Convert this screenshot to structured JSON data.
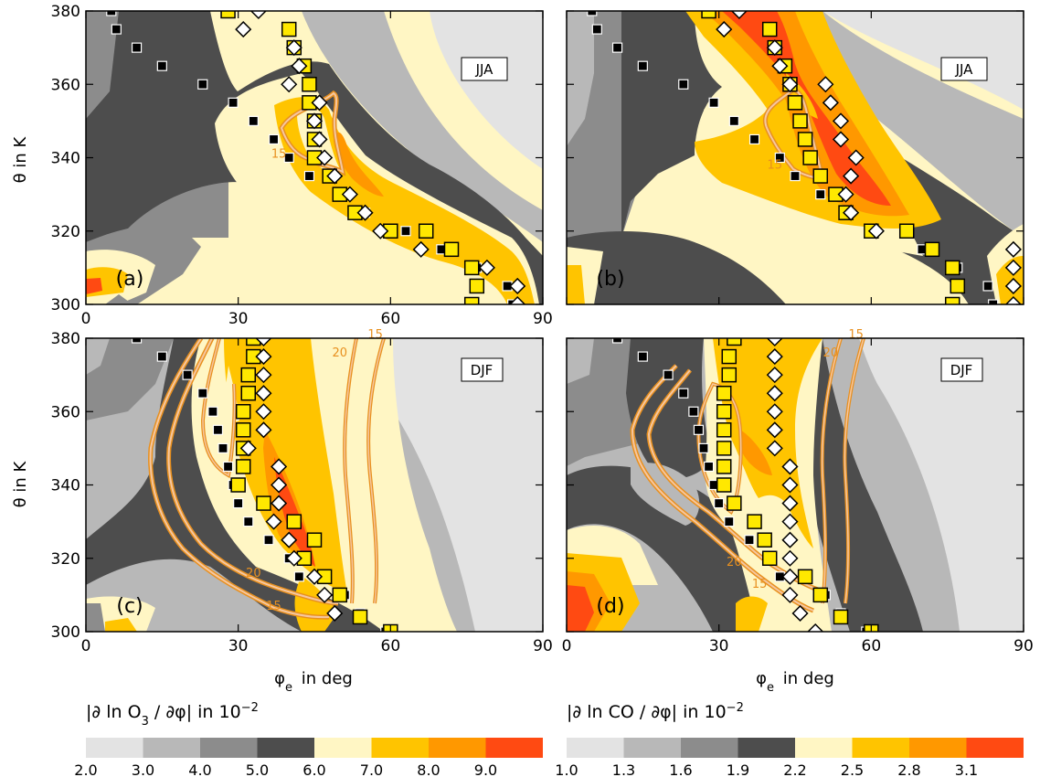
{
  "chart_data": [
    {
      "type": "heatmap",
      "panel": "(a)",
      "season": "JJA",
      "xlabel": "",
      "ylabel": "θ in K",
      "xlim": [
        0,
        90
      ],
      "ylim": [
        300,
        380
      ],
      "xticks": [
        "0",
        "30",
        "60",
        "90"
      ],
      "yticks": [
        "300",
        "320",
        "340",
        "360",
        "380"
      ],
      "field": "|∂ ln O3 / ∂φ|",
      "contour_labels": [
        {
          "text": "15",
          "x": 38,
          "y": 340
        }
      ],
      "squares_yellow": [
        [
          28,
          380
        ],
        [
          40,
          375
        ],
        [
          41,
          370
        ],
        [
          43,
          365
        ],
        [
          44,
          360
        ],
        [
          44,
          355
        ],
        [
          45,
          350
        ],
        [
          45,
          345
        ],
        [
          45,
          340
        ],
        [
          48,
          335
        ],
        [
          50,
          330
        ],
        [
          53,
          325
        ],
        [
          60,
          320
        ],
        [
          67,
          320
        ],
        [
          72,
          315
        ],
        [
          76,
          310
        ],
        [
          77,
          305
        ],
        [
          76,
          300
        ]
      ],
      "diamonds": [
        [
          34,
          380
        ],
        [
          31,
          375
        ],
        [
          41,
          370
        ],
        [
          42,
          365
        ],
        [
          40,
          360
        ],
        [
          46,
          355
        ],
        [
          45,
          350
        ],
        [
          46,
          345
        ],
        [
          47,
          340
        ],
        [
          49,
          335
        ],
        [
          52,
          330
        ],
        [
          55,
          325
        ],
        [
          58,
          320
        ],
        [
          66,
          315
        ],
        [
          79,
          310
        ],
        [
          85,
          305
        ],
        [
          85,
          300
        ]
      ],
      "squares_black": [
        [
          5,
          380
        ],
        [
          6,
          375
        ],
        [
          10,
          370
        ],
        [
          15,
          365
        ],
        [
          23,
          360
        ],
        [
          29,
          355
        ],
        [
          33,
          350
        ],
        [
          37,
          345
        ],
        [
          40,
          340
        ],
        [
          44,
          335
        ],
        [
          50,
          330
        ],
        [
          55,
          325
        ],
        [
          63,
          320
        ],
        [
          70,
          315
        ],
        [
          77,
          310
        ],
        [
          83,
          305
        ],
        [
          84,
          300
        ]
      ]
    },
    {
      "type": "heatmap",
      "panel": "(b)",
      "season": "JJA",
      "xlabel": "",
      "ylabel": "",
      "xlim": [
        0,
        90
      ],
      "ylim": [
        300,
        380
      ],
      "field": "|∂ ln CO / ∂φ|",
      "contour_labels": [
        {
          "text": "15",
          "x": 41,
          "y": 337
        }
      ],
      "squares_yellow": [
        [
          28,
          380
        ],
        [
          40,
          375
        ],
        [
          41,
          370
        ],
        [
          43,
          365
        ],
        [
          44,
          360
        ],
        [
          45,
          355
        ],
        [
          46,
          350
        ],
        [
          47,
          345
        ],
        [
          48,
          340
        ],
        [
          50,
          335
        ],
        [
          53,
          330
        ],
        [
          55,
          325
        ],
        [
          60,
          320
        ],
        [
          67,
          320
        ],
        [
          72,
          315
        ],
        [
          76,
          310
        ],
        [
          77,
          305
        ],
        [
          76,
          300
        ]
      ],
      "diamonds": [
        [
          34,
          380
        ],
        [
          31,
          375
        ],
        [
          41,
          370
        ],
        [
          42,
          365
        ],
        [
          44,
          360
        ],
        [
          51,
          360
        ],
        [
          52,
          355
        ],
        [
          54,
          350
        ],
        [
          54,
          345
        ],
        [
          57,
          340
        ],
        [
          56,
          335
        ],
        [
          55,
          330
        ],
        [
          56,
          325
        ],
        [
          61,
          320
        ],
        [
          88,
          315
        ],
        [
          88,
          310
        ],
        [
          88,
          305
        ],
        [
          88,
          300
        ]
      ],
      "squares_black": [
        [
          5,
          380
        ],
        [
          6,
          375
        ],
        [
          10,
          370
        ],
        [
          15,
          365
        ],
        [
          23,
          360
        ],
        [
          29,
          355
        ],
        [
          33,
          350
        ],
        [
          37,
          345
        ],
        [
          42,
          340
        ],
        [
          45,
          335
        ],
        [
          50,
          330
        ],
        [
          55,
          325
        ],
        [
          60,
          320
        ],
        [
          70,
          315
        ],
        [
          77,
          310
        ],
        [
          83,
          305
        ],
        [
          84,
          300
        ]
      ]
    },
    {
      "type": "heatmap",
      "panel": "(c)",
      "season": "DJF",
      "xlabel": "φe in deg",
      "ylabel": "θ in K",
      "xlim": [
        0,
        90
      ],
      "ylim": [
        300,
        380
      ],
      "xticks": [
        "0",
        "30",
        "60",
        "90"
      ],
      "yticks": [
        "300",
        "320",
        "340",
        "360",
        "380"
      ],
      "field": "|∂ ln O3 / ∂φ|",
      "contour_labels": [
        {
          "text": "20",
          "x": 50,
          "y": 375
        },
        {
          "text": "15",
          "x": 57,
          "y": 380
        },
        {
          "text": "20",
          "x": 33,
          "y": 315
        },
        {
          "text": "15",
          "x": 37,
          "y": 306
        }
      ],
      "squares_yellow": [
        [
          33,
          380
        ],
        [
          33,
          375
        ],
        [
          32,
          370
        ],
        [
          32,
          365
        ],
        [
          31,
          360
        ],
        [
          31,
          355
        ],
        [
          31,
          350
        ],
        [
          31,
          345
        ],
        [
          30,
          340
        ],
        [
          35,
          335
        ],
        [
          41,
          330
        ],
        [
          45,
          325
        ],
        [
          43,
          320
        ],
        [
          47,
          315
        ],
        [
          50,
          310
        ],
        [
          54,
          304
        ],
        [
          60,
          300
        ]
      ],
      "diamonds": [
        [
          35,
          380
        ],
        [
          35,
          375
        ],
        [
          35,
          370
        ],
        [
          35,
          365
        ],
        [
          35,
          360
        ],
        [
          35,
          355
        ],
        [
          32,
          350
        ],
        [
          38,
          345
        ],
        [
          38,
          340
        ],
        [
          38,
          335
        ],
        [
          37,
          330
        ],
        [
          40,
          325
        ],
        [
          41,
          320
        ],
        [
          45,
          315
        ],
        [
          47,
          310
        ],
        [
          49,
          305
        ]
      ],
      "squares_black": [
        [
          10,
          380
        ],
        [
          15,
          375
        ],
        [
          20,
          370
        ],
        [
          23,
          365
        ],
        [
          25,
          360
        ],
        [
          26,
          355
        ],
        [
          27,
          350
        ],
        [
          28,
          345
        ],
        [
          29,
          340
        ],
        [
          30,
          335
        ],
        [
          32,
          330
        ],
        [
          36,
          325
        ],
        [
          40,
          320
        ],
        [
          42,
          315
        ],
        [
          51,
          310
        ],
        [
          54,
          305
        ],
        [
          59,
          300
        ]
      ]
    },
    {
      "type": "heatmap",
      "panel": "(d)",
      "season": "DJF",
      "xlabel": "φe in deg",
      "ylabel": "",
      "xlim": [
        0,
        90
      ],
      "ylim": [
        300,
        380
      ],
      "xticks": [
        "0",
        "30",
        "60",
        "90"
      ],
      "field": "|∂ ln CO / ∂φ|",
      "contour_labels": [
        {
          "text": "20",
          "x": 52,
          "y": 375
        },
        {
          "text": "15",
          "x": 57,
          "y": 380
        },
        {
          "text": "20",
          "x": 33,
          "y": 318
        },
        {
          "text": "15",
          "x": 38,
          "y": 312
        }
      ],
      "squares_yellow": [
        [
          33,
          380
        ],
        [
          32,
          375
        ],
        [
          32,
          370
        ],
        [
          31,
          365
        ],
        [
          31,
          360
        ],
        [
          31,
          355
        ],
        [
          31,
          350
        ],
        [
          31,
          345
        ],
        [
          31,
          340
        ],
        [
          33,
          335
        ],
        [
          37,
          330
        ],
        [
          39,
          325
        ],
        [
          40,
          320
        ],
        [
          47,
          315
        ],
        [
          50,
          310
        ],
        [
          54,
          304
        ],
        [
          60,
          300
        ]
      ],
      "diamonds": [
        [
          41,
          380
        ],
        [
          41,
          375
        ],
        [
          41,
          370
        ],
        [
          41,
          365
        ],
        [
          41,
          360
        ],
        [
          41,
          355
        ],
        [
          41,
          350
        ],
        [
          44,
          345
        ],
        [
          44,
          340
        ],
        [
          44,
          335
        ],
        [
          44,
          330
        ],
        [
          44,
          325
        ],
        [
          44,
          320
        ],
        [
          44,
          315
        ],
        [
          44,
          310
        ],
        [
          46,
          305
        ],
        [
          49,
          300
        ]
      ],
      "squares_black": [
        [
          10,
          380
        ],
        [
          15,
          375
        ],
        [
          20,
          370
        ],
        [
          23,
          365
        ],
        [
          25,
          360
        ],
        [
          26,
          355
        ],
        [
          27,
          350
        ],
        [
          28,
          345
        ],
        [
          29,
          340
        ],
        [
          30,
          335
        ],
        [
          32,
          330
        ],
        [
          36,
          325
        ],
        [
          40,
          320
        ],
        [
          42,
          315
        ],
        [
          51,
          310
        ],
        [
          54,
          305
        ],
        [
          59,
          300
        ]
      ]
    }
  ],
  "colorbars": [
    {
      "title": "|∂ ln O",
      "title_sub": "3",
      "title_rest": " / ∂φ| in 10",
      "title_sup": "−2",
      "labels": [
        "2.0",
        "3.0",
        "4.0",
        "5.0",
        "6.0",
        "7.0",
        "8.0",
        "9.0"
      ],
      "colors": [
        "#e3e3e3",
        "#b8b8b8",
        "#8c8c8c",
        "#4d4d4d",
        "#fff6c4",
        "#ffc400",
        "#ff9800",
        "#ff4a12"
      ]
    },
    {
      "title": "|∂ ln CO / ∂φ| in 10",
      "title_sup": "−2",
      "labels": [
        "1.0",
        "1.3",
        "1.6",
        "1.9",
        "2.2",
        "2.5",
        "2.8",
        "3.1"
      ],
      "colors": [
        "#e3e3e3",
        "#b8b8b8",
        "#8c8c8c",
        "#4d4d4d",
        "#fff6c4",
        "#ffc400",
        "#ff9800",
        "#ff4a12"
      ]
    }
  ]
}
